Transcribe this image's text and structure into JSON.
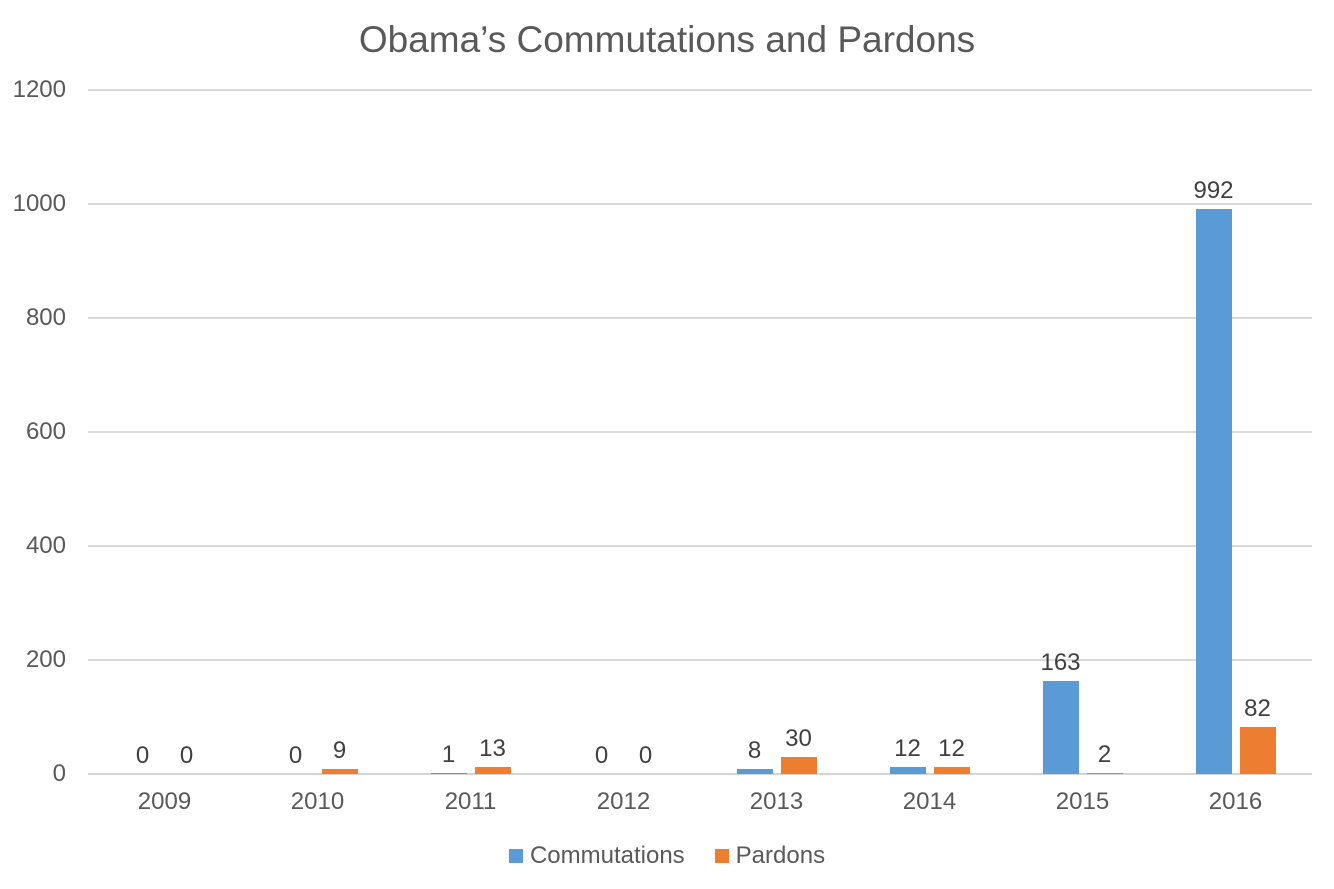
{
  "chart_data": {
    "type": "bar",
    "title": "Obama’s Commutations and Pardons",
    "categories": [
      "2009",
      "2010",
      "2011",
      "2012",
      "2013",
      "2014",
      "2015",
      "2016"
    ],
    "series": [
      {
        "name": "Commutations",
        "color": "#5B9BD5",
        "values": [
          0,
          0,
          1,
          0,
          8,
          12,
          163,
          992
        ]
      },
      {
        "name": "Pardons",
        "color": "#ED7D31",
        "values": [
          0,
          9,
          13,
          0,
          30,
          12,
          2,
          82
        ]
      }
    ],
    "xlabel": "",
    "ylabel": "",
    "ylim": [
      0,
      1200
    ],
    "ytick_step": 200,
    "yticks": [
      "0",
      "200",
      "400",
      "600",
      "800",
      "1000",
      "1200"
    ],
    "grid": true,
    "data_labels": true,
    "legend_position": "bottom",
    "colors": {
      "background": "#FFFFFF",
      "gridline": "#D9D9D9",
      "title_text": "#595959",
      "axis_text": "#595959",
      "data_label_text": "#404040"
    }
  }
}
